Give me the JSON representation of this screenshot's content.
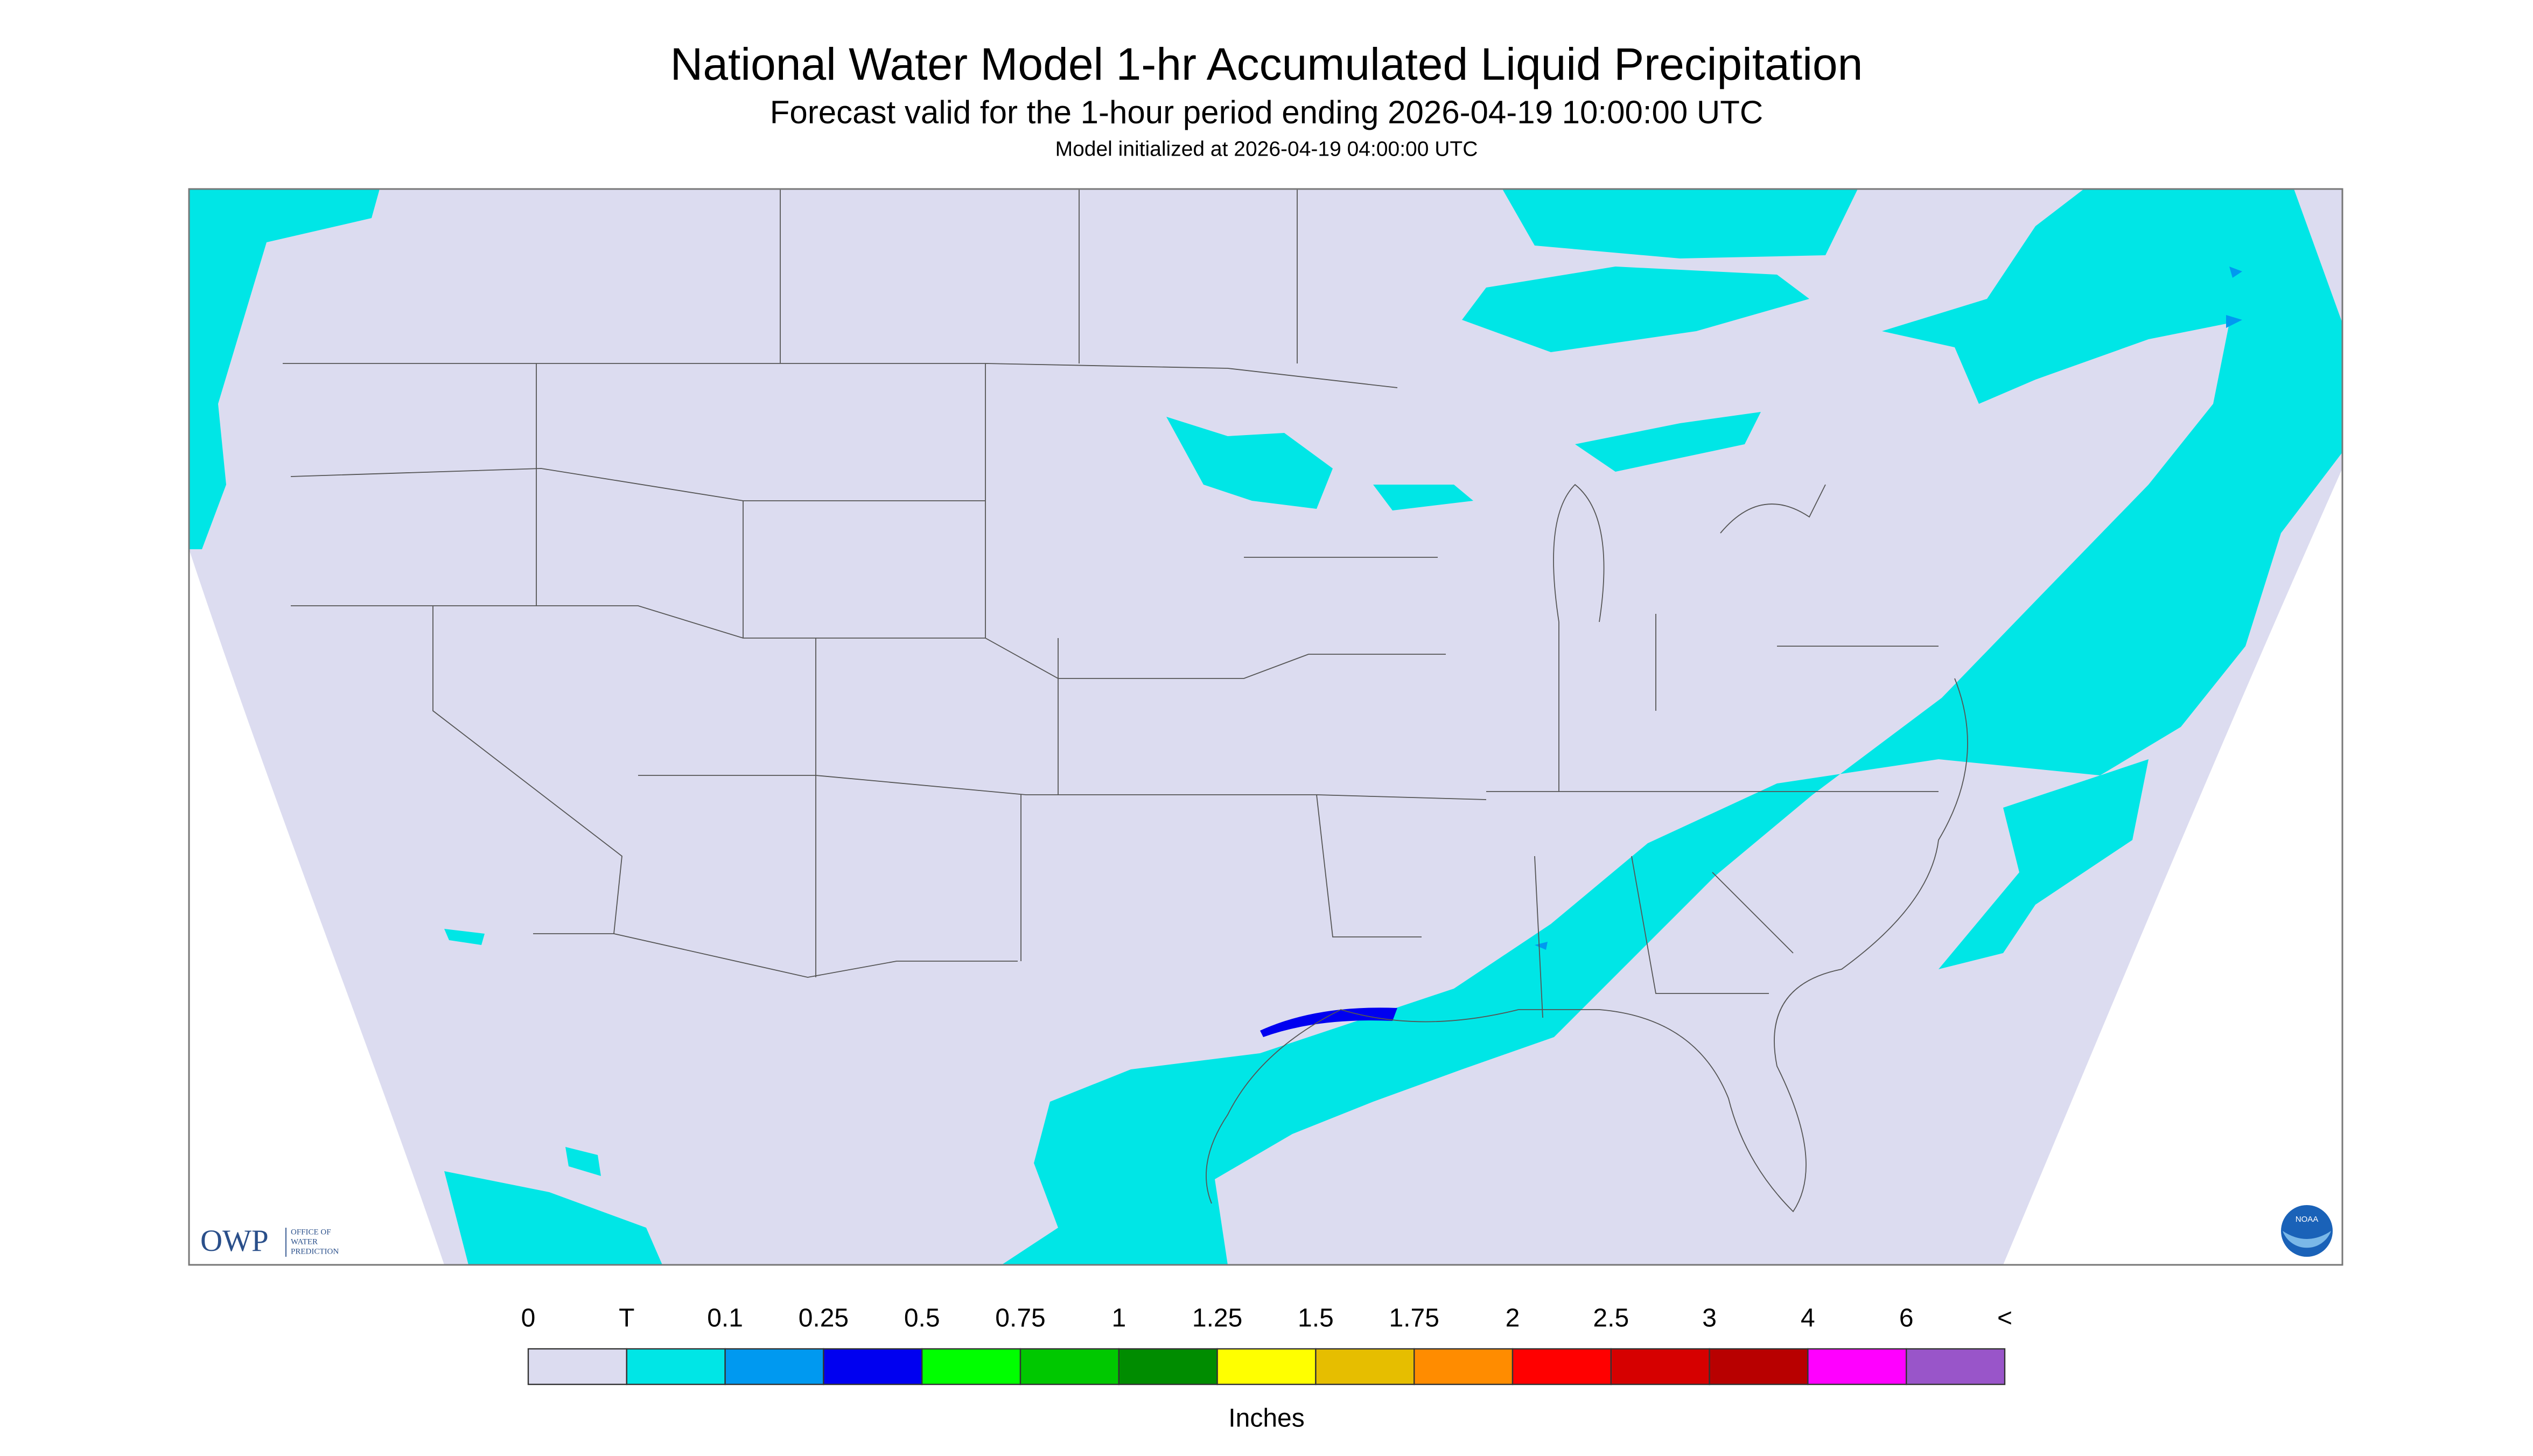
{
  "header": {
    "title": "National Water Model 1-hr Accumulated Liquid Precipitation",
    "subtitle": "Forecast valid for the 1-hour period ending 2026-04-19 10:00:00 UTC",
    "initialized": "Model initialized at 2026-04-19 04:00:00 UTC"
  },
  "legend": {
    "labels": [
      "0",
      "T",
      "0.1",
      "0.25",
      "0.5",
      "0.75",
      "1",
      "1.25",
      "1.5",
      "1.75",
      "2",
      "2.5",
      "3",
      "4",
      "6",
      "<"
    ],
    "colors": [
      "#dcdcf0",
      "#00e6e6",
      "#0099f0",
      "#0000f0",
      "#00ff00",
      "#00c800",
      "#008c00",
      "#ffff00",
      "#e6be00",
      "#ff8c00",
      "#ff0000",
      "#d60000",
      "#b80000",
      "#ff00ff",
      "#9955c9"
    ],
    "unit": "Inches"
  },
  "logos": {
    "owp": "OWP",
    "owp_name": [
      "OFFICE OF",
      "WATER",
      "PREDICTION"
    ],
    "noaa": "NOAA"
  }
}
